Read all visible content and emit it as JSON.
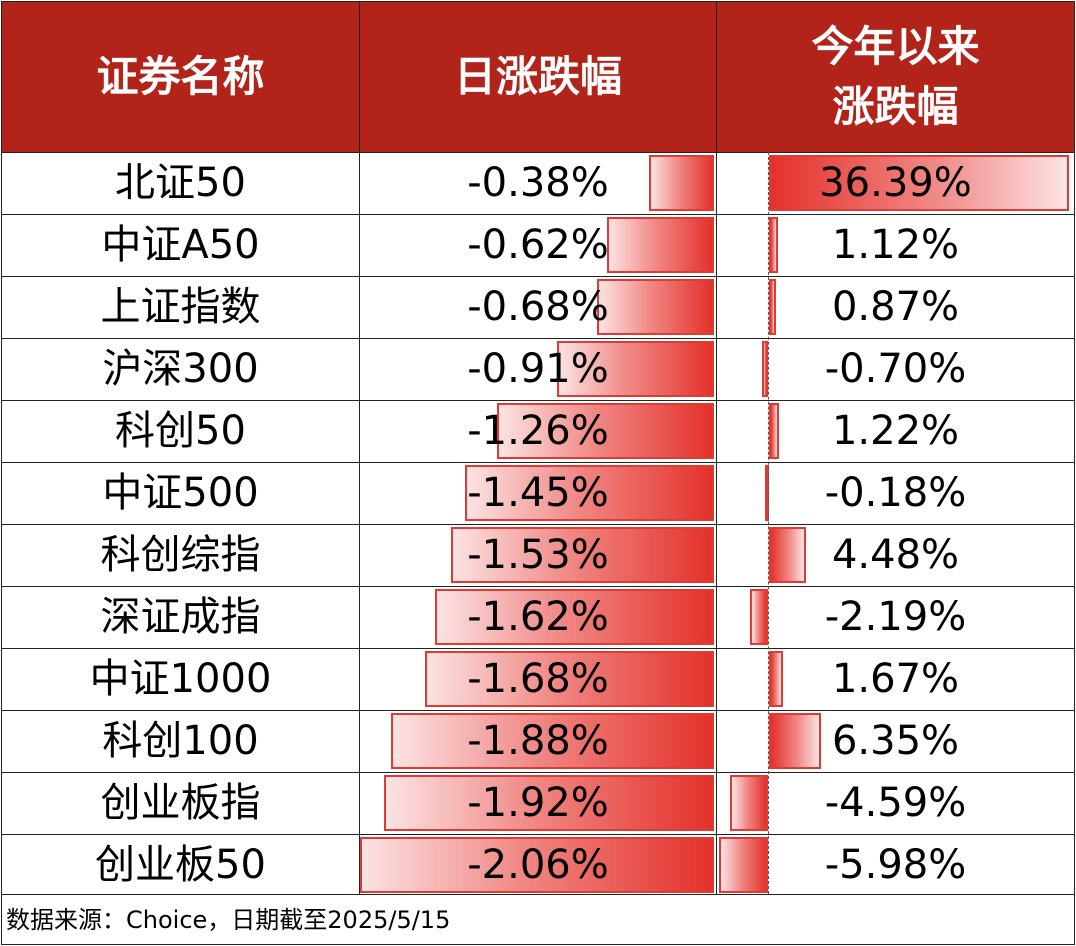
{
  "header": {
    "col_name": "证券名称",
    "col_daily": "日涨跌幅",
    "col_ytd_line1": "今年以来",
    "col_ytd_line2": "涨跌幅"
  },
  "chart_data": {
    "type": "table",
    "columns": [
      "证券名称",
      "日涨跌幅",
      "今年以来涨跌幅"
    ],
    "rows": [
      {
        "name": "北证50",
        "daily": -0.38,
        "daily_label": "-0.38%",
        "ytd": 36.39,
        "ytd_label": "36.39%"
      },
      {
        "name": "中证A50",
        "daily": -0.62,
        "daily_label": "-0.62%",
        "ytd": 1.12,
        "ytd_label": "1.12%"
      },
      {
        "name": "上证指数",
        "daily": -0.68,
        "daily_label": "-0.68%",
        "ytd": 0.87,
        "ytd_label": "0.87%"
      },
      {
        "name": "沪深300",
        "daily": -0.91,
        "daily_label": "-0.91%",
        "ytd": -0.7,
        "ytd_label": "-0.70%"
      },
      {
        "name": "科创50",
        "daily": -1.26,
        "daily_label": "-1.26%",
        "ytd": 1.22,
        "ytd_label": "1.22%"
      },
      {
        "name": "中证500",
        "daily": -1.45,
        "daily_label": "-1.45%",
        "ytd": -0.18,
        "ytd_label": "-0.18%"
      },
      {
        "name": "科创综指",
        "daily": -1.53,
        "daily_label": "-1.53%",
        "ytd": 4.48,
        "ytd_label": "4.48%"
      },
      {
        "name": "深证成指",
        "daily": -1.62,
        "daily_label": "-1.62%",
        "ytd": -2.19,
        "ytd_label": "-2.19%"
      },
      {
        "name": "中证1000",
        "daily": -1.68,
        "daily_label": "-1.68%",
        "ytd": 1.67,
        "ytd_label": "1.67%"
      },
      {
        "name": "科创100",
        "daily": -1.88,
        "daily_label": "-1.88%",
        "ytd": 6.35,
        "ytd_label": "6.35%"
      },
      {
        "name": "创业板指",
        "daily": -1.92,
        "daily_label": "-1.92%",
        "ytd": -4.59,
        "ytd_label": "-4.59%"
      },
      {
        "name": "创业板50",
        "daily": -2.06,
        "daily_label": "-2.06%",
        "ytd": -5.98,
        "ytd_label": "-5.98%"
      }
    ]
  },
  "colors": {
    "header_bg": "#b22319",
    "header_text": "#ffffff",
    "bar_red": "#e4312b"
  },
  "footer": {
    "source": "数据来源：Choice，日期截至2025/5/15"
  }
}
